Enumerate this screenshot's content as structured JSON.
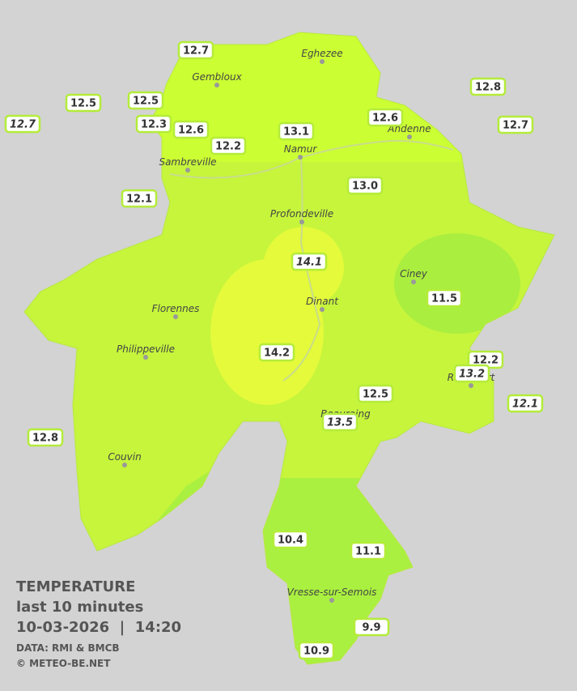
{
  "legend": {
    "title": "TEMPERATURE",
    "period": "last 10 minutes",
    "timestamp": "10-03-2026  |  14:20",
    "source": "DATA: RMI & BMCB",
    "copyright": "© METEO-BE.NET"
  },
  "cities": [
    "Eghezee",
    "Gembloux",
    "Andenne",
    "Namur",
    "Sambreville",
    "Profondeville",
    "Ciney",
    "Dinant",
    "Florennes",
    "Philippeville",
    "Rochefort",
    "Beauraing",
    "Couvin",
    "Vresse-sur-Semois"
  ],
  "stations": [
    {
      "temperature": "12.7",
      "italic": false
    },
    {
      "temperature": "12.5",
      "italic": false
    },
    {
      "temperature": "12.5",
      "italic": false
    },
    {
      "temperature": "12.3",
      "italic": false
    },
    {
      "temperature": "12.6",
      "italic": false
    },
    {
      "temperature": "12.2",
      "italic": false
    },
    {
      "temperature": "13.1",
      "italic": false
    },
    {
      "temperature": "12.6",
      "italic": false
    },
    {
      "temperature": "12.8",
      "italic": false
    },
    {
      "temperature": "12.7",
      "italic": false
    },
    {
      "temperature": "12.7",
      "italic": true
    },
    {
      "temperature": "12.1",
      "italic": false
    },
    {
      "temperature": "13.0",
      "italic": false
    },
    {
      "temperature": "14.1",
      "italic": true
    },
    {
      "temperature": "11.5",
      "italic": false
    },
    {
      "temperature": "14.2",
      "italic": false
    },
    {
      "temperature": "12.2",
      "italic": false
    },
    {
      "temperature": "13.2",
      "italic": true
    },
    {
      "temperature": "12.1",
      "italic": true
    },
    {
      "temperature": "12.5",
      "italic": false
    },
    {
      "temperature": "13.5",
      "italic": true
    },
    {
      "temperature": "12.8",
      "italic": false
    },
    {
      "temperature": "10.4",
      "italic": false
    },
    {
      "temperature": "11.1",
      "italic": false
    },
    {
      "temperature": "9.9",
      "italic": false
    },
    {
      "temperature": "10.9",
      "italic": false
    }
  ]
}
